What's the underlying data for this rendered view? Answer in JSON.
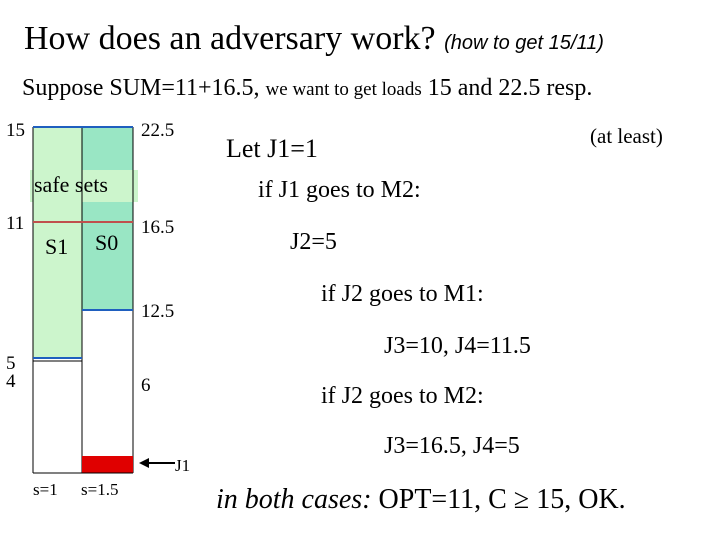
{
  "header": {
    "title": "How does an adversary work?",
    "title_note": "(how to get 15/11)",
    "subtitle_a": "Suppose SUM=11+16.5,",
    "subtitle_b": "we want to get loads",
    "subtitle_c": "15 and 22.5 resp."
  },
  "diagram": {
    "m1_top": "15",
    "m2_top": "22.5",
    "safe_sets": "safe sets",
    "m1_mid": "11",
    "s1": "S1",
    "s0": "S0",
    "m2_mid": "16.5",
    "m2_low": "12.5",
    "m1_five": "5",
    "m1_four": "4",
    "m2_six": "6",
    "job": "J1",
    "speed1": "s=1",
    "speed2": "s=1.5"
  },
  "body": {
    "let": "Let J1=1",
    "at_least": "(at least)",
    "case1": "if J1 goes to M2:",
    "j2": "J2=5",
    "case2": "if J2 goes to M1:",
    "r2": "J3=10, J4=11.5",
    "case3": "if J2 goes to M2:",
    "r3": "J3=16.5, J4=5",
    "concl_a": "in both cases:",
    "concl_b": "OPT=11, C ≥ 15, OK."
  }
}
